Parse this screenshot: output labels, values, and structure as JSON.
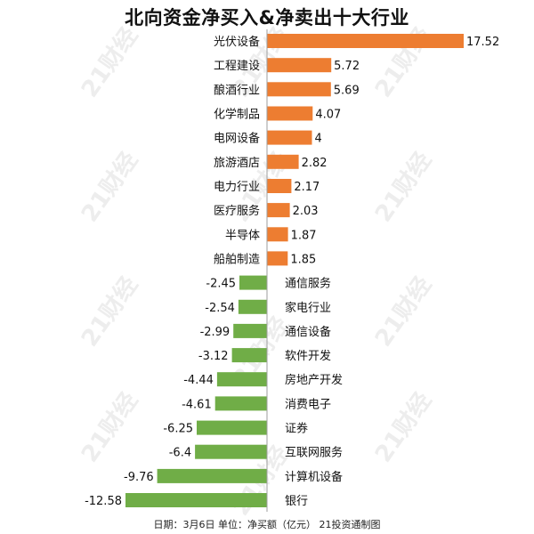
{
  "header": {
    "title": "北向资金净买入&净卖出十大行业"
  },
  "footer": {
    "note": "日期：3月6日 单位：净买额（亿元） 21投资通制图"
  },
  "watermark": {
    "text": "21财经"
  },
  "colors": {
    "buy": "#ED7D31",
    "sell": "#70AD47",
    "text": "#111111",
    "axis": "#9E9E9E"
  },
  "chart_data": {
    "type": "bar",
    "orientation": "horizontal",
    "title": "北向资金净买入&净卖出十大行业",
    "xlabel": "",
    "ylabel": "",
    "xlim": [
      -12.58,
      17.52
    ],
    "grid": false,
    "categories": [
      "光伏设备",
      "工程建设",
      "酿酒行业",
      "化学制品",
      "电网设备",
      "旅游酒店",
      "电力行业",
      "医疗服务",
      "半导体",
      "船舶制造",
      "通信服务",
      "家电行业",
      "通信设备",
      "软件开发",
      "房地产开发",
      "消费电子",
      "证券",
      "互联网服务",
      "计算机设备",
      "银行"
    ],
    "values": [
      17.52,
      5.72,
      5.69,
      4.07,
      4,
      2.82,
      2.17,
      2.03,
      1.87,
      1.85,
      -2.45,
      -2.54,
      -2.99,
      -3.12,
      -4.44,
      -4.61,
      -6.25,
      -6.4,
      -9.76,
      -12.58
    ]
  }
}
